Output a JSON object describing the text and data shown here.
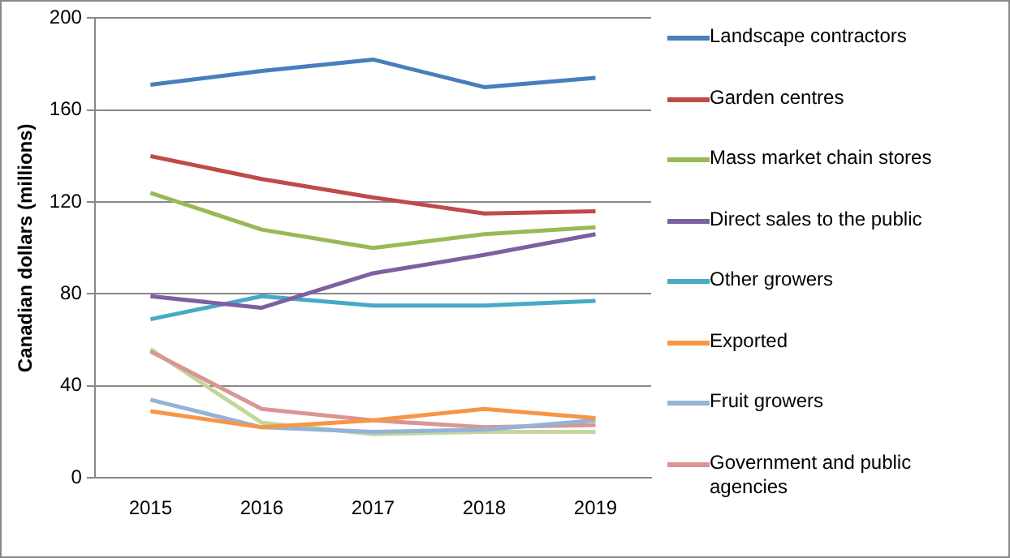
{
  "chart_data": {
    "type": "line",
    "ylabel": "Canadian dollars (millions)",
    "categories": [
      "2015",
      "2016",
      "2017",
      "2018",
      "2019"
    ],
    "ylim": [
      0,
      200
    ],
    "yticks": [
      0,
      40,
      80,
      120,
      160,
      200
    ],
    "grid": "y",
    "legend": "right",
    "marker": "none",
    "line_style": "solid",
    "series": [
      {
        "name": "Landscape contractors",
        "color": "#4a7ebb",
        "values": [
          171,
          177,
          182,
          170,
          174
        ]
      },
      {
        "name": "Garden centres",
        "color": "#be4b48",
        "values": [
          140,
          130,
          122,
          115,
          116
        ]
      },
      {
        "name": "Mass market chain stores",
        "color": "#98b954",
        "values": [
          124,
          108,
          100,
          106,
          109
        ]
      },
      {
        "name": "Direct sales to the public",
        "color": "#7d60a0",
        "values": [
          79,
          74,
          89,
          97,
          106
        ]
      },
      {
        "name": "Other growers",
        "color": "#46aac5",
        "values": [
          69,
          79,
          75,
          75,
          77
        ]
      },
      {
        "name": "Exported",
        "color": "#f79646",
        "values": [
          29,
          22,
          25,
          30,
          26
        ]
      },
      {
        "name": "Fruit growers",
        "color": "#95b3d7",
        "values": [
          34,
          22,
          20,
          21,
          25
        ]
      },
      {
        "name": "Government and public agencies",
        "color": "#d99694",
        "values": [
          55,
          30,
          25,
          22,
          23
        ]
      },
      {
        "color": "#c3d69b",
        "values": [
          56,
          24,
          19,
          20,
          20
        ]
      }
    ]
  }
}
